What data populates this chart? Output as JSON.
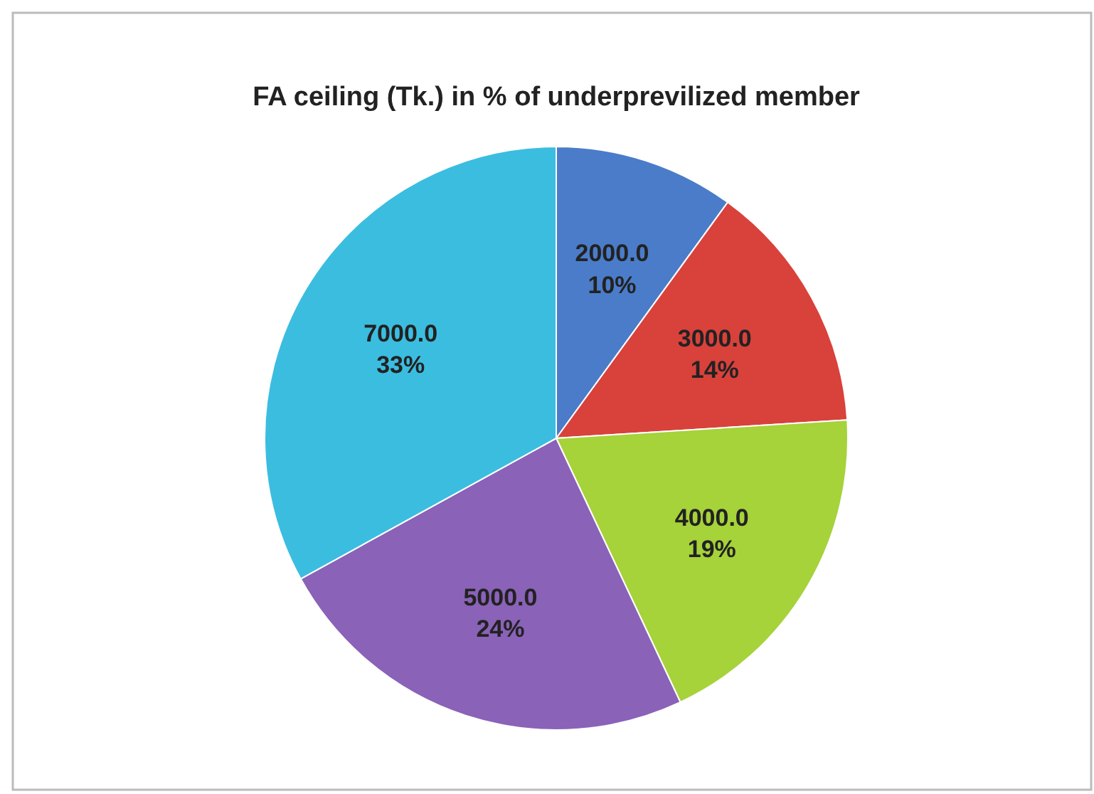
{
  "chart_data": {
    "type": "pie",
    "title": "FA ceiling (Tk.) in % of underprevilized member",
    "categories": [
      "2000.0",
      "3000.0",
      "4000.0",
      "5000.0",
      "7000.0"
    ],
    "values": [
      10,
      14,
      19,
      24,
      33
    ],
    "value_labels": [
      "10%",
      "14%",
      "19%",
      "24%",
      "33%"
    ],
    "colors": [
      "#4a7cc9",
      "#d9413b",
      "#a6d23a",
      "#8a62b8",
      "#3bbde0"
    ],
    "legend": false
  }
}
